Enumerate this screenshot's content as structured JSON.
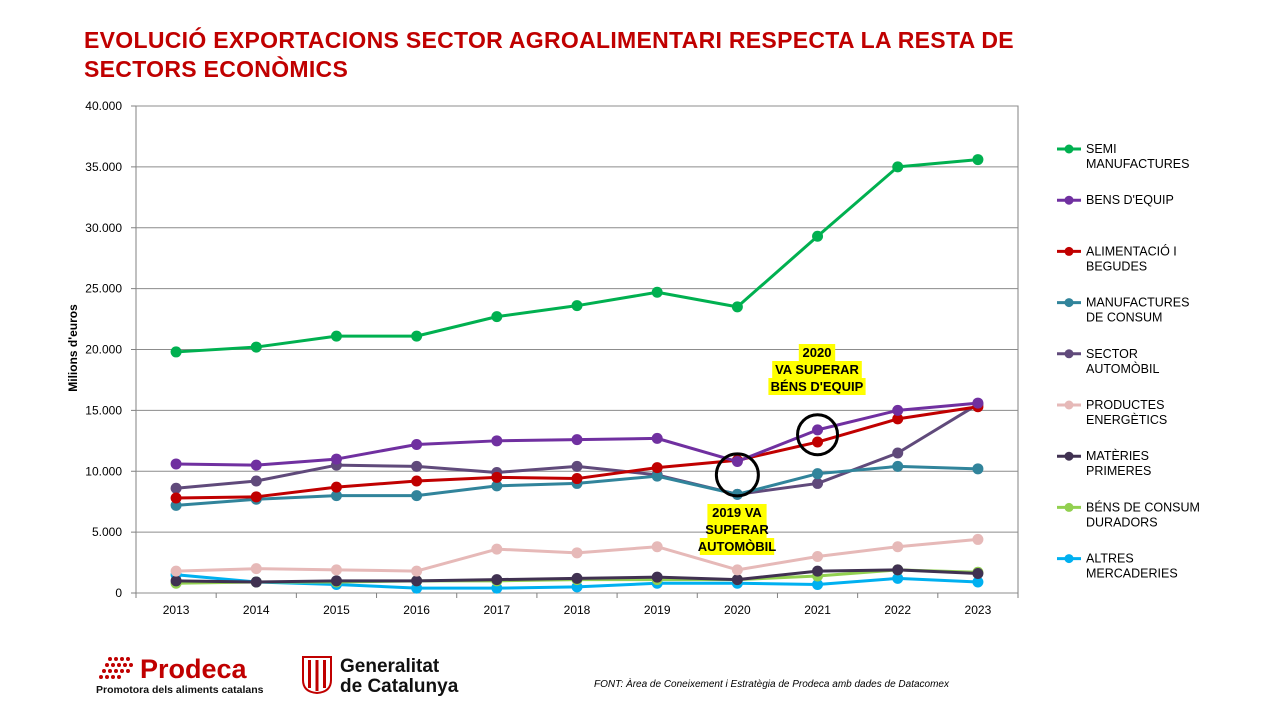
{
  "title": "EVOLUCIÓ EXPORTACIONS SECTOR AGROALIMENTARI RESPECTA LA RESTA DE SECTORS ECONÒMICS",
  "source": "FONT:  Àrea de Coneixement i Estratègia de Prodeca amb dades de Datacomex",
  "logos": {
    "prodeca_name": "Prodeca",
    "prodeca_tagline": "Promotora dels aliments catalans",
    "gencat_line1": "Generalitat",
    "gencat_line2": "de Catalunya"
  },
  "colors": {
    "title": "#c00000"
  },
  "chart_data": {
    "type": "line",
    "ylabel": "Milions d'euros",
    "xlabel": "",
    "ylim": [
      0,
      40000
    ],
    "yticks": [
      0,
      5000,
      10000,
      15000,
      20000,
      25000,
      30000,
      35000,
      40000
    ],
    "ytick_labels": [
      "0",
      "5.000",
      "10.000",
      "15.000",
      "20.000",
      "25.000",
      "30.000",
      "35.000",
      "40.000"
    ],
    "grid": true,
    "legend_position": "right",
    "x": [
      "2013",
      "2014",
      "2015",
      "2016",
      "2017",
      "2018",
      "2019",
      "2020",
      "2021",
      "2022",
      "2023"
    ],
    "series": [
      {
        "name": "SEMI MANUFACTURES",
        "label_lines": [
          "SEMI",
          "MANUFACTURES"
        ],
        "color": "#00b050",
        "values": [
          19800,
          20200,
          21100,
          21100,
          22700,
          23600,
          24700,
          23500,
          29300,
          35000,
          35600
        ]
      },
      {
        "name": "BENS D'EQUIP",
        "label_lines": [
          "BENS D'EQUIP"
        ],
        "color": "#7030a0",
        "values": [
          10600,
          10500,
          11000,
          12200,
          12500,
          12600,
          12700,
          10800,
          13400,
          15000,
          15600
        ]
      },
      {
        "name": "ALIMENTACIÓ I BEGUDES",
        "label_lines": [
          "ALIMENTACIÓ I",
          "BEGUDES"
        ],
        "color": "#c00000",
        "values": [
          7800,
          7900,
          8700,
          9200,
          9500,
          9400,
          10300,
          10900,
          12400,
          14300,
          15300
        ]
      },
      {
        "name": "MANUFACTURES DE CONSUM",
        "label_lines": [
          "MANUFACTURES",
          "DE CONSUM"
        ],
        "color": "#31849b",
        "values": [
          7200,
          7700,
          8000,
          8000,
          8800,
          9000,
          9600,
          8100,
          9800,
          10400,
          10200
        ]
      },
      {
        "name": "SECTOR AUTOMÒBIL",
        "label_lines": [
          "SECTOR",
          "AUTOMÒBIL"
        ],
        "color": "#604a7b",
        "values": [
          8600,
          9200,
          10500,
          10400,
          9900,
          10400,
          9700,
          8100,
          9000,
          11500,
          15500
        ]
      },
      {
        "name": "PRODUCTES ENERGÈTICS",
        "label_lines": [
          "PRODUCTES",
          "ENERGÈTICS"
        ],
        "color": "#e6b9b8",
        "values": [
          1800,
          2000,
          1900,
          1800,
          3600,
          3300,
          3800,
          1900,
          3000,
          3800,
          4400
        ]
      },
      {
        "name": "MATÈRIES PRIMERES",
        "label_lines": [
          "MATÈRIES",
          "PRIMERES"
        ],
        "color": "#403151",
        "values": [
          1000,
          900,
          1000,
          1000,
          1100,
          1200,
          1300,
          1100,
          1800,
          1900,
          1600
        ]
      },
      {
        "name": "BÉNS DE CONSUM DURADORS",
        "label_lines": [
          "BÉNS DE CONSUM",
          "DURADORS"
        ],
        "color": "#92d050",
        "values": [
          800,
          900,
          900,
          1000,
          1000,
          1100,
          1100,
          1100,
          1400,
          1900,
          1700
        ]
      },
      {
        "name": "ALTRES MERCADERIES",
        "label_lines": [
          "ALTRES",
          "MERCADERIES"
        ],
        "color": "#00b0f0",
        "values": [
          1500,
          900,
          700,
          400,
          400,
          500,
          800,
          800,
          700,
          1200,
          900
        ]
      }
    ],
    "annotations": [
      {
        "lines": [
          "2020",
          "VA  SUPERAR",
          "BÉNS D'EQUIP"
        ],
        "year": "2021",
        "value": 13000
      },
      {
        "lines": [
          "2019 VA",
          "SUPERAR",
          "AUTOMÒBIL"
        ],
        "year": "2020",
        "value": 9700
      }
    ]
  }
}
